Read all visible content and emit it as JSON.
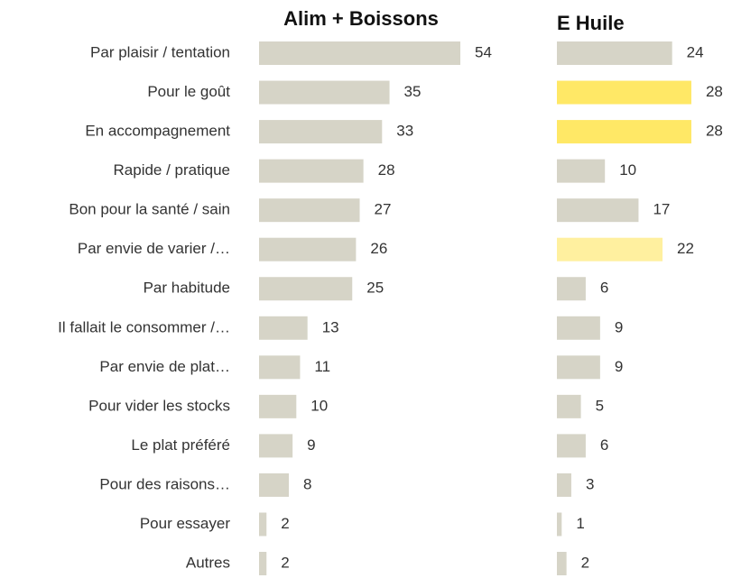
{
  "chart_data": {
    "type": "bar",
    "categories": [
      "Par plaisir / tentation",
      "Pour le goût",
      "En accompagnement",
      "Rapide / pratique",
      "Bon pour la santé / sain",
      "Par envie de varier /…",
      "Par habitude",
      "Il fallait le consommer /…",
      "Par envie de plat…",
      "Pour vider les stocks",
      "Le plat préféré",
      "Pour des raisons…",
      "Pour essayer",
      "Autres"
    ],
    "series": [
      {
        "name": "Alim + Boissons",
        "color": "#d6d4c7",
        "values": [
          54,
          35,
          33,
          28,
          27,
          26,
          25,
          13,
          11,
          10,
          9,
          8,
          2,
          2
        ]
      },
      {
        "name": "E Huile",
        "colors": [
          "#d6d4c7",
          "#ffe866",
          "#ffe866",
          "#d6d4c7",
          "#d6d4c7",
          "#fff09f",
          "#d6d4c7",
          "#d6d4c7",
          "#d6d4c7",
          "#d6d4c7",
          "#d6d4c7",
          "#d6d4c7",
          "#d6d4c7",
          "#d6d4c7"
        ],
        "values": [
          24,
          28,
          28,
          10,
          17,
          22,
          6,
          9,
          9,
          5,
          6,
          3,
          1,
          2
        ]
      }
    ]
  }
}
